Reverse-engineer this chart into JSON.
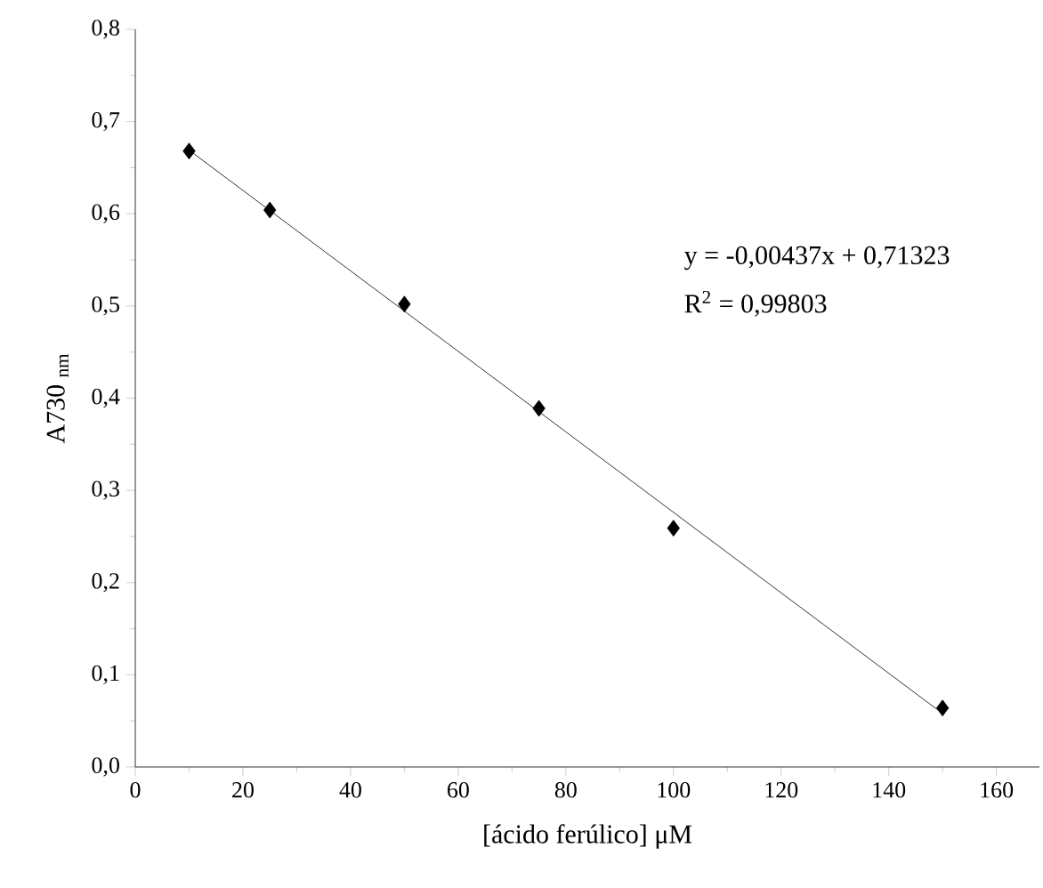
{
  "chart_data": {
    "type": "scatter",
    "xlabel": "[ácido ferúlico] μM",
    "ylabel": "A730 $_{nm}$",
    "xlim": [
      0,
      168
    ],
    "ylim": [
      0,
      0.8
    ],
    "xticks": [
      0,
      20,
      40,
      60,
      80,
      100,
      120,
      140,
      160
    ],
    "yticks": [
      {
        "value": 0,
        "label": "0,0"
      },
      {
        "value": 0.1,
        "label": "0,1"
      },
      {
        "value": 0.2,
        "label": "0,2"
      },
      {
        "value": 0.3,
        "label": "0,3"
      },
      {
        "value": 0.4,
        "label": "0,4"
      },
      {
        "value": 0.5,
        "label": "0,5"
      },
      {
        "value": 0.6,
        "label": "0,6"
      },
      {
        "value": 0.7,
        "label": "0,7"
      },
      {
        "value": 0.8,
        "label": "0,8"
      }
    ],
    "series": [
      {
        "color": "#000000",
        "marker": "diamond",
        "x": [
          10,
          25,
          50,
          75,
          100,
          150
        ],
        "values": [
          0.668,
          0.604,
          0.502,
          0.389,
          0.259,
          0.064
        ]
      },
      {
        "type": "line",
        "color": "#000000",
        "marker": "none",
        "line_style": "solid",
        "x": [
          10,
          150
        ],
        "values": [
          0.669,
          0.058
        ]
      }
    ],
    "annotations": [
      "y = -0,00437x + 0,71323",
      "R$^{2}$ = 0,99803"
    ]
  }
}
